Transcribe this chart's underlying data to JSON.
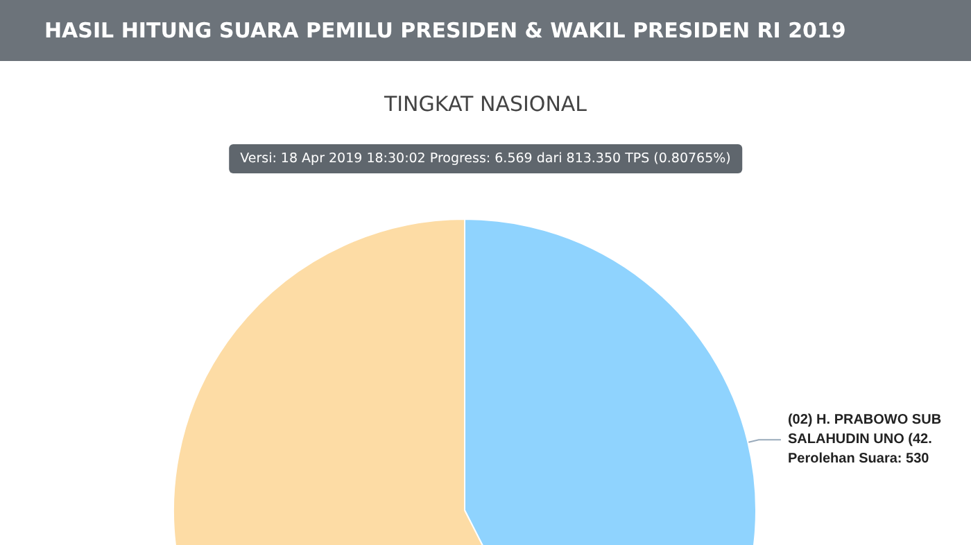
{
  "chart_data": {
    "type": "pie",
    "title": "HASIL HITUNG SUARA PEMILU PRESIDEN & WAKIL PRESIDEN RI 2019",
    "subtitle": "TINGKAT NASIONAL",
    "annotations": [
      "Versi: 18 Apr 2019 18:30:02 Progress: 6.569 dari 813.350 TPS (0.80765%)",
      "Perolehan Suara: 530"
    ],
    "categories": [
      "(02) H. PRABOWO SUB",
      null
    ],
    "values": [
      42.5,
      57.5
    ],
    "value_labels": [
      "SALAHUDIN UNO (42.",
      null
    ],
    "colors": [
      "#8fd3fe",
      "#fddca5"
    ]
  }
}
